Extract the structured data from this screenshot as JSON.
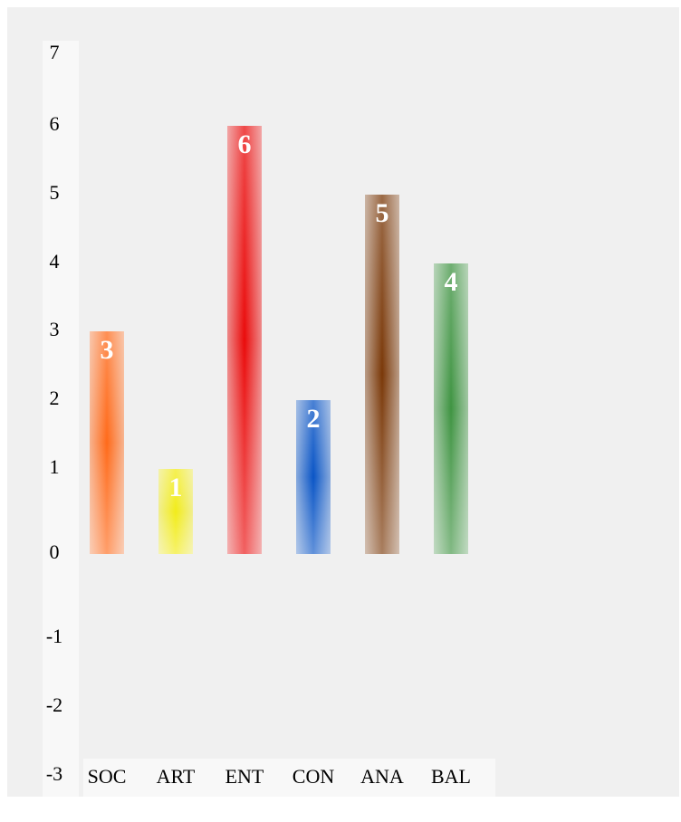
{
  "chart_data": {
    "type": "bar",
    "title": "",
    "xlabel": "",
    "ylabel": "",
    "categories": [
      "SOC",
      "ART",
      "ENT",
      "CON",
      "ANA",
      "BAL"
    ],
    "values": [
      3,
      1,
      6,
      2,
      5,
      4
    ],
    "colors": [
      "#ff6a1a",
      "#f2ec1a",
      "#ea0b0b",
      "#0a55c6",
      "#7a3808",
      "#3f9442"
    ],
    "yticks": [
      7,
      6,
      5,
      4,
      3,
      2,
      1,
      0,
      -1,
      -2,
      -3
    ],
    "ylim": [
      -3,
      7
    ],
    "grid": false,
    "legend": "none"
  }
}
